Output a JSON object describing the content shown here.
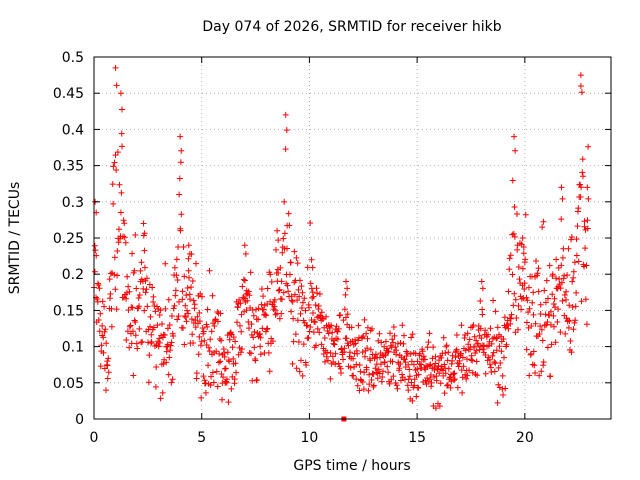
{
  "chart_data": {
    "type": "scatter",
    "title": "Day 074 of 2026, SRMTID for receiver hikb",
    "xlabel": "GPS time / hours",
    "ylabel": "SRMTID / TECUs",
    "xlim": [
      0,
      24
    ],
    "ylim": [
      0,
      0.5
    ],
    "xticks": [
      0,
      5,
      10,
      15,
      20
    ],
    "xtick_labels": [
      "0",
      "5",
      "10",
      "15",
      "20"
    ],
    "yticks": [
      0,
      0.05,
      0.1,
      0.15,
      0.2,
      0.25,
      0.3,
      0.35,
      0.4,
      0.45,
      0.5
    ],
    "ytick_labels": [
      "0",
      "0.05",
      "0.1",
      "0.15",
      "0.2",
      "0.25",
      "0.3",
      "0.35",
      "0.4",
      "0.45",
      "0.5"
    ],
    "grid": true,
    "marker": "plus",
    "marker_color": "#ff0000",
    "series": [
      {
        "name": "SRMTID",
        "profile": {
          "hours": [
            0,
            0.3,
            0.6,
            1.0,
            1.4,
            2.0,
            2.5,
            3.0,
            3.5,
            4.0,
            4.5,
            5.0,
            5.5,
            6.0,
            6.5,
            7.0,
            7.5,
            8.0,
            8.5,
            9.0,
            9.5,
            10.0,
            10.5,
            11.0,
            11.5,
            12.0,
            13.0,
            14.0,
            15.0,
            15.5,
            16.0,
            16.5,
            17.0,
            17.5,
            18.0,
            18.5,
            19.0,
            19.5,
            20.0,
            20.5,
            21.0,
            21.5,
            22.0,
            22.5,
            22.9
          ],
          "baseline": [
            0.13,
            0.12,
            0.11,
            0.14,
            0.15,
            0.14,
            0.13,
            0.12,
            0.11,
            0.12,
            0.14,
            0.13,
            0.11,
            0.09,
            0.1,
            0.13,
            0.12,
            0.13,
            0.14,
            0.13,
            0.14,
            0.14,
            0.12,
            0.1,
            0.09,
            0.09,
            0.08,
            0.08,
            0.07,
            0.07,
            0.06,
            0.07,
            0.08,
            0.09,
            0.1,
            0.1,
            0.09,
            0.12,
            0.17,
            0.15,
            0.14,
            0.15,
            0.16,
            0.2,
            0.24
          ]
        },
        "peaks": [
          {
            "hour": 0.05,
            "value": 0.3
          },
          {
            "hour": 1.0,
            "value": 0.485
          },
          {
            "hour": 1.25,
            "value": 0.45
          },
          {
            "hour": 2.3,
            "value": 0.27
          },
          {
            "hour": 4.0,
            "value": 0.39
          },
          {
            "hour": 4.4,
            "value": 0.24
          },
          {
            "hour": 7.0,
            "value": 0.24
          },
          {
            "hour": 8.5,
            "value": 0.26
          },
          {
            "hour": 8.9,
            "value": 0.42
          },
          {
            "hour": 10.1,
            "value": 0.22
          },
          {
            "hour": 11.7,
            "value": 0.19
          },
          {
            "hour": 18.0,
            "value": 0.19
          },
          {
            "hour": 19.5,
            "value": 0.39
          },
          {
            "hour": 19.9,
            "value": 0.25
          },
          {
            "hour": 21.7,
            "value": 0.32
          },
          {
            "hour": 22.6,
            "value": 0.475
          },
          {
            "hour": 22.9,
            "value": 0.32
          }
        ],
        "dropouts": [
          {
            "hour": 11.6,
            "value": 0.0
          }
        ]
      }
    ]
  }
}
